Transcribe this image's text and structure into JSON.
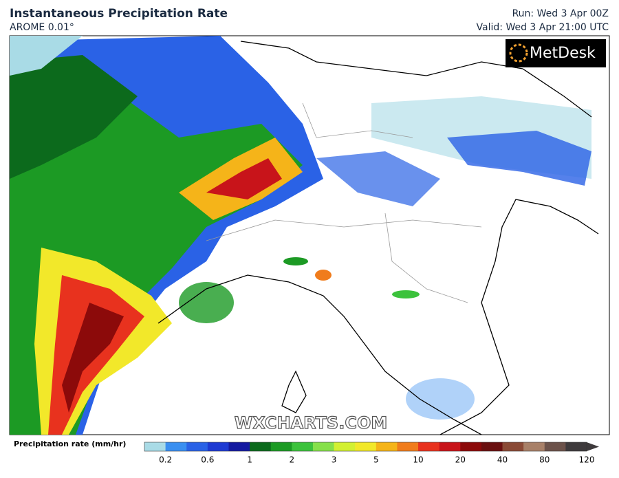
{
  "header": {
    "title": "Instantaneous Precipitation Rate",
    "subtitle": "AROME 0.01°",
    "run": "Run: Wed 3 Apr 00Z",
    "valid": "Valid: Wed 3 Apr 21:00 UTC"
  },
  "brand": "MetDesk",
  "watermark": "WXCHARTS.COM",
  "colorbar": {
    "label": "Precipitation rate (mm/hr)",
    "colors": [
      "#a9dbe6",
      "#3a8ff0",
      "#2a62e6",
      "#1e3ad2",
      "#141aa0",
      "#0c6a1c",
      "#1c9a24",
      "#3cc23c",
      "#86e04a",
      "#d2f032",
      "#f2e82a",
      "#f5b419",
      "#f07c1c",
      "#e8321e",
      "#c8141a",
      "#8c0a0a",
      "#6a1010",
      "#8a4a36",
      "#a88068",
      "#6c524a",
      "#3e3a3c"
    ],
    "ticks": [
      0.2,
      0.6,
      1,
      2,
      3,
      5,
      10,
      20,
      40,
      80,
      120
    ]
  }
}
